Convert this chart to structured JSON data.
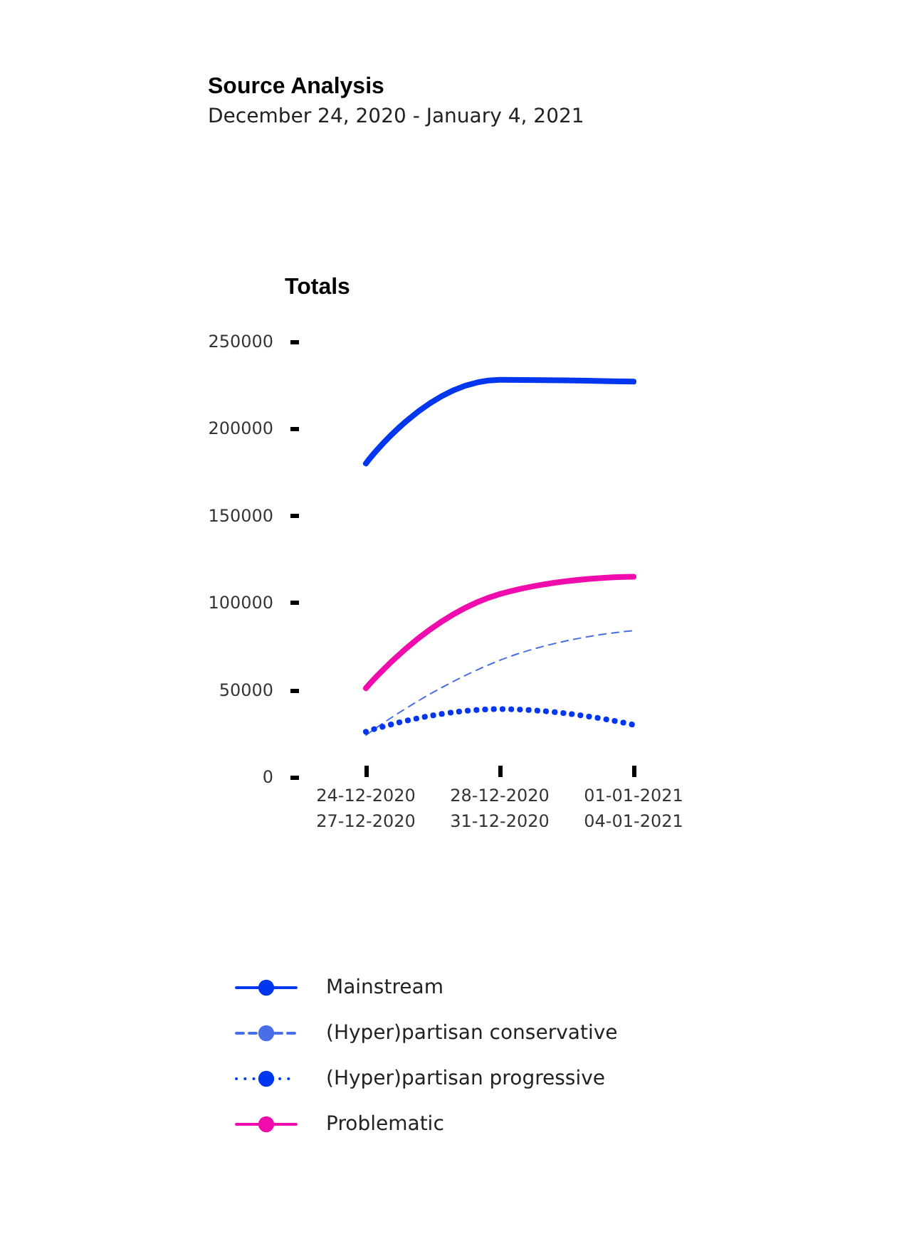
{
  "chart_data": {
    "type": "line",
    "title": "Source Analysis",
    "subtitle": "December 24, 2020 - January 4, 2021",
    "ylabel": "Totals",
    "categories": [
      "24-12-2020\n27-12-2020",
      "28-12-2020\n31-12-2020",
      "01-01-2021\n04-01-2021"
    ],
    "ylim": [
      0,
      250000
    ],
    "yticks": [
      0,
      50000,
      100000,
      150000,
      200000,
      250000
    ],
    "grid": false,
    "legend": "bottom",
    "marker": "none",
    "series": [
      {
        "name": "Mainstream",
        "color": "#0036f0",
        "values": [
          180000,
          228000,
          227000
        ],
        "line_style": "solid"
      },
      {
        "name": "(Hyper)partisan conservative",
        "color": "#4a6ee8",
        "values": [
          24000,
          67000,
          84000
        ],
        "line_style": "dashed"
      },
      {
        "name": "(Hyper)partisan progressive",
        "color": "#0036f0",
        "values": [
          26000,
          39000,
          30000
        ],
        "line_style": "dotted"
      },
      {
        "name": "Problematic",
        "color": "#f00cac",
        "values": [
          51000,
          105000,
          115000
        ],
        "line_style": "solid"
      }
    ]
  }
}
